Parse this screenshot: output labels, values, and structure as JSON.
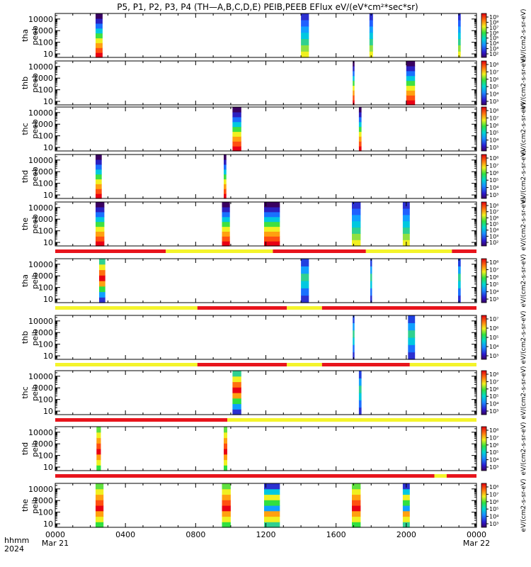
{
  "title": "P5, P1, P2, P3, P4 (TH—A,B,C,D,E) PEIB,PEEB EFlux eV/(eV*cm²*sec*sr)",
  "colorbar_unit": "eV/(cm2-s-sr-eV)",
  "footer": {
    "time_label": "hhmm",
    "year_label": "2024",
    "x_ticks": [
      "0000",
      "0400",
      "0800",
      "1200",
      "1600",
      "2000",
      "0000"
    ],
    "x_dates": [
      "Mar 21",
      "",
      "",
      "",
      "",
      "",
      "Mar 22"
    ]
  },
  "colors": {
    "mode_red": "#e8141c",
    "mode_yellow": "#f4f42a"
  },
  "chart_data": {
    "type": "heatmap",
    "x_unit": "hours UT from 2024-03-21 00:00",
    "xlim": [
      0,
      24
    ],
    "y_scale": "log",
    "panels": [
      {
        "probe": "tha",
        "product": "peeb",
        "y_ticks": [
          "10000",
          "1000",
          "100",
          "10"
        ],
        "ylim": [
          5,
          30000
        ],
        "cbar_ticks": [
          "10⁹",
          "10⁸",
          "10⁷",
          "10⁶",
          "10⁵",
          "10⁴",
          "10³",
          "10²"
        ],
        "bursts": [
          {
            "t0": 2.3,
            "t1": 2.7,
            "profile": "low"
          },
          {
            "t0": 14.0,
            "t1": 14.45,
            "profile": "mid"
          },
          {
            "t0": 17.9,
            "t1": 18.1,
            "profile": "mid"
          },
          {
            "t0": 22.95,
            "t1": 23.1,
            "profile": "mid"
          }
        ],
        "mode_bar": []
      },
      {
        "probe": "thb",
        "product": "peeb",
        "y_ticks": [
          "10000",
          "1000",
          "100",
          "10"
        ],
        "ylim": [
          5,
          30000
        ],
        "cbar_ticks": [
          "10⁸",
          "10⁷",
          "10⁶",
          "10⁵",
          "10⁴",
          "10³"
        ],
        "bursts": [
          {
            "t0": 16.95,
            "t1": 17.05,
            "profile": "low"
          },
          {
            "t0": 20.0,
            "t1": 20.5,
            "profile": "low"
          }
        ],
        "mode_bar": []
      },
      {
        "probe": "thc",
        "product": "peeb",
        "y_ticks": [
          "10000",
          "1000",
          "100",
          "10"
        ],
        "ylim": [
          5,
          30000
        ],
        "cbar_ticks": [
          "10⁸",
          "10⁷",
          "10⁶",
          "10⁵",
          "10⁴",
          "10³"
        ],
        "bursts": [
          {
            "t0": 10.1,
            "t1": 10.6,
            "profile": "low"
          },
          {
            "t0": 17.3,
            "t1": 17.45,
            "profile": "low"
          }
        ],
        "mode_bar": []
      },
      {
        "probe": "thd",
        "product": "peeb",
        "y_ticks": [
          "10000",
          "1000",
          "100",
          "10"
        ],
        "ylim": [
          5,
          30000
        ],
        "cbar_ticks": [
          "10⁸",
          "10⁷",
          "10⁶",
          "10⁵",
          "10⁴",
          "10³"
        ],
        "bursts": [
          {
            "t0": 2.3,
            "t1": 2.65,
            "profile": "low"
          },
          {
            "t0": 9.6,
            "t1": 9.75,
            "profile": "low"
          }
        ],
        "mode_bar": []
      },
      {
        "probe": "the",
        "product": "peeb",
        "y_ticks": [
          "10000",
          "1000",
          "100",
          "10"
        ],
        "ylim": [
          5,
          30000
        ],
        "cbar_ticks": [
          "10⁸",
          "10⁷",
          "10⁶",
          "10⁵",
          "10⁴",
          "10³",
          "10²"
        ],
        "bursts": [
          {
            "t0": 2.3,
            "t1": 2.8,
            "profile": "low"
          },
          {
            "t0": 9.5,
            "t1": 9.95,
            "profile": "low"
          },
          {
            "t0": 11.9,
            "t1": 12.8,
            "profile": "low"
          },
          {
            "t0": 16.9,
            "t1": 17.4,
            "profile": "mid"
          },
          {
            "t0": 19.8,
            "t1": 20.2,
            "profile": "mid"
          }
        ],
        "mode_bar": [
          {
            "t0": 0.0,
            "t1": 6.3,
            "mode": "red"
          },
          {
            "t0": 6.3,
            "t1": 12.4,
            "mode": "yellow"
          },
          {
            "t0": 12.4,
            "t1": 17.7,
            "mode": "red"
          },
          {
            "t0": 17.7,
            "t1": 22.6,
            "mode": "yellow"
          },
          {
            "t0": 22.6,
            "t1": 24.0,
            "mode": "red"
          }
        ]
      },
      {
        "probe": "tha",
        "product": "peib",
        "y_ticks": [
          "10000",
          "1000",
          "100",
          "10"
        ],
        "ylim": [
          5,
          30000
        ],
        "cbar_ticks": [
          "10⁸",
          "10⁷",
          "10⁶",
          "10⁵",
          "10⁴",
          "10³"
        ],
        "bursts": [
          {
            "t0": 2.5,
            "t1": 2.85,
            "profile": "ion"
          },
          {
            "t0": 14.0,
            "t1": 14.45,
            "profile": "ionlow"
          },
          {
            "t0": 17.95,
            "t1": 18.05,
            "profile": "ionlow"
          },
          {
            "t0": 22.95,
            "t1": 23.1,
            "profile": "ionlow"
          }
        ],
        "mode_bar": [
          {
            "t0": 0.0,
            "t1": 8.1,
            "mode": "yellow"
          },
          {
            "t0": 8.1,
            "t1": 13.2,
            "mode": "red"
          },
          {
            "t0": 13.2,
            "t1": 15.2,
            "mode": "yellow"
          },
          {
            "t0": 15.2,
            "t1": 24.0,
            "mode": "red"
          }
        ]
      },
      {
        "probe": "thb",
        "product": "peib",
        "y_ticks": [
          "10000",
          "1000",
          "100",
          "10"
        ],
        "ylim": [
          5,
          30000
        ],
        "cbar_ticks": [
          "10⁷",
          "10⁶",
          "10⁵",
          "10⁴",
          "10³"
        ],
        "bursts": [
          {
            "t0": 16.95,
            "t1": 17.05,
            "profile": "ionlow"
          },
          {
            "t0": 20.1,
            "t1": 20.5,
            "profile": "ionlow"
          }
        ],
        "mode_bar": [
          {
            "t0": 0.0,
            "t1": 8.1,
            "mode": "yellow"
          },
          {
            "t0": 8.1,
            "t1": 13.2,
            "mode": "red"
          },
          {
            "t0": 13.2,
            "t1": 15.2,
            "mode": "yellow"
          },
          {
            "t0": 15.2,
            "t1": 20.2,
            "mode": "red"
          },
          {
            "t0": 20.2,
            "t1": 24.0,
            "mode": "yellow"
          }
        ]
      },
      {
        "probe": "thc",
        "product": "peib",
        "y_ticks": [
          "10000",
          "1000",
          "100",
          "10"
        ],
        "ylim": [
          5,
          30000
        ],
        "cbar_ticks": [
          "10⁸",
          "10⁷",
          "10⁶",
          "10⁵",
          "10⁴",
          "10³"
        ],
        "bursts": [
          {
            "t0": 10.1,
            "t1": 10.6,
            "profile": "ion"
          },
          {
            "t0": 17.3,
            "t1": 17.45,
            "profile": "ionlow"
          }
        ],
        "mode_bar": [
          {
            "t0": 0.0,
            "t1": 9.8,
            "mode": "red"
          },
          {
            "t0": 9.8,
            "t1": 24.0,
            "mode": "yellow"
          }
        ]
      },
      {
        "probe": "thd",
        "product": "peib",
        "y_ticks": [
          "10000",
          "1000",
          "100",
          "10"
        ],
        "ylim": [
          5,
          30000
        ],
        "cbar_ticks": [
          "10⁸",
          "10⁷",
          "10⁶",
          "10⁵",
          "10⁴",
          "10³"
        ],
        "bursts": [
          {
            "t0": 2.35,
            "t1": 2.6,
            "profile": "ionhigh"
          },
          {
            "t0": 9.6,
            "t1": 9.8,
            "profile": "ionhigh"
          }
        ],
        "mode_bar": [
          {
            "t0": 0.0,
            "t1": 21.6,
            "mode": "red"
          },
          {
            "t0": 21.6,
            "t1": 22.3,
            "mode": "yellow"
          },
          {
            "t0": 22.3,
            "t1": 24.0,
            "mode": "red"
          }
        ]
      },
      {
        "probe": "the",
        "product": "peib",
        "y_ticks": [
          "10000",
          "1000",
          "100",
          "10"
        ],
        "ylim": [
          5,
          30000
        ],
        "cbar_ticks": [
          "10⁸",
          "10⁷",
          "10⁶",
          "10⁵",
          "10⁴",
          "10³"
        ],
        "bursts": [
          {
            "t0": 2.3,
            "t1": 2.75,
            "profile": "ionhigh"
          },
          {
            "t0": 9.5,
            "t1": 10.0,
            "profile": "ionhigh"
          },
          {
            "t0": 11.9,
            "t1": 12.8,
            "profile": "ionmix"
          },
          {
            "t0": 16.9,
            "t1": 17.4,
            "profile": "ionhigh"
          },
          {
            "t0": 19.8,
            "t1": 20.2,
            "profile": "ionmix"
          }
        ],
        "mode_bar": []
      }
    ]
  }
}
